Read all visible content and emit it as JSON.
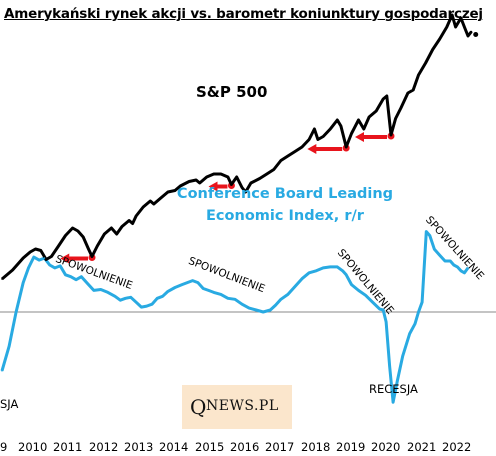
{
  "title": "Amerykański rynek akcji vs. barometr koniunktury gospodarczej",
  "labels": {
    "sp500": "S&P 500",
    "cb_line1": "Conference Board Leading",
    "cb_line2": "Economic Index, r/r",
    "slowdown_1": "SPOWOLNIENIE",
    "slowdown_2": "SPOWOLNIENIE",
    "slowdown_3": "SPOWOLNIENIE",
    "slowdown_4": "SPOWOLNIENIE",
    "recession_left": "SJA",
    "recession_2020": "RECESJA"
  },
  "brand": {
    "q": "Q",
    "rest": "NEWS.PL"
  },
  "chart_data": {
    "type": "line",
    "title": "Amerykański rynek akcji vs. barometr koniunktury gospodarczej",
    "x_ticks": [
      "9",
      "2010",
      "2011",
      "2012",
      "2013",
      "2014",
      "2015",
      "2016",
      "2017",
      "2018",
      "2019",
      "2020",
      "2021",
      "2022"
    ],
    "x_range": [
      2009.2,
      2022.7
    ],
    "grid": false,
    "colors": {
      "sp500": "#000000",
      "cb": "#29aae2",
      "arrows": "#e8141c",
      "zero_line": "#8a8a8a"
    },
    "series": [
      {
        "name": "S&P 500",
        "relative_level": [
          [
            2009.2,
            0.02
          ],
          [
            2009.5,
            0.08
          ],
          [
            2009.8,
            0.16
          ],
          [
            2010.0,
            0.2
          ],
          [
            2010.15,
            0.22
          ],
          [
            2010.3,
            0.21
          ],
          [
            2010.45,
            0.15
          ],
          [
            2010.6,
            0.17
          ],
          [
            2010.8,
            0.24
          ],
          [
            2011.0,
            0.31
          ],
          [
            2011.2,
            0.36
          ],
          [
            2011.35,
            0.34
          ],
          [
            2011.5,
            0.3
          ],
          [
            2011.65,
            0.22
          ],
          [
            2011.75,
            0.17
          ],
          [
            2011.9,
            0.24
          ],
          [
            2012.1,
            0.32
          ],
          [
            2012.3,
            0.36
          ],
          [
            2012.45,
            0.32
          ],
          [
            2012.6,
            0.37
          ],
          [
            2012.8,
            0.41
          ],
          [
            2012.9,
            0.39
          ],
          [
            2013.0,
            0.44
          ],
          [
            2013.2,
            0.5
          ],
          [
            2013.4,
            0.54
          ],
          [
            2013.5,
            0.52
          ],
          [
            2013.7,
            0.56
          ],
          [
            2013.9,
            0.6
          ],
          [
            2014.1,
            0.61
          ],
          [
            2014.25,
            0.64
          ],
          [
            2014.5,
            0.67
          ],
          [
            2014.7,
            0.68
          ],
          [
            2014.8,
            0.66
          ],
          [
            2015.0,
            0.7
          ],
          [
            2015.2,
            0.72
          ],
          [
            2015.4,
            0.72
          ],
          [
            2015.6,
            0.7
          ],
          [
            2015.7,
            0.65
          ],
          [
            2015.85,
            0.7
          ],
          [
            2016.0,
            0.63
          ],
          [
            2016.1,
            0.6
          ],
          [
            2016.25,
            0.66
          ],
          [
            2016.5,
            0.69
          ],
          [
            2016.7,
            0.72
          ],
          [
            2016.9,
            0.75
          ],
          [
            2017.1,
            0.81
          ],
          [
            2017.3,
            0.84
          ],
          [
            2017.5,
            0.87
          ],
          [
            2017.7,
            0.9
          ],
          [
            2017.9,
            0.95
          ],
          [
            2018.05,
            1.02
          ],
          [
            2018.15,
            0.95
          ],
          [
            2018.3,
            0.97
          ],
          [
            2018.5,
            1.02
          ],
          [
            2018.7,
            1.08
          ],
          [
            2018.8,
            1.04
          ],
          [
            2018.95,
            0.9
          ],
          [
            2019.1,
            0.99
          ],
          [
            2019.3,
            1.08
          ],
          [
            2019.45,
            1.02
          ],
          [
            2019.6,
            1.1
          ],
          [
            2019.8,
            1.14
          ],
          [
            2020.0,
            1.22
          ],
          [
            2020.1,
            1.24
          ],
          [
            2020.22,
            0.98
          ],
          [
            2020.35,
            1.09
          ],
          [
            2020.5,
            1.16
          ],
          [
            2020.7,
            1.26
          ],
          [
            2020.85,
            1.28
          ],
          [
            2021.0,
            1.38
          ],
          [
            2021.2,
            1.46
          ],
          [
            2021.4,
            1.55
          ],
          [
            2021.6,
            1.62
          ],
          [
            2021.8,
            1.7
          ],
          [
            2021.95,
            1.78
          ],
          [
            2022.05,
            1.7
          ],
          [
            2022.2,
            1.76
          ],
          [
            2022.3,
            1.7
          ],
          [
            2022.4,
            1.64
          ],
          [
            2022.5,
            1.67
          ]
        ]
      },
      {
        "name": "Conference Board Leading Economic Index, r/r",
        "values": [
          [
            2009.2,
            -0.6
          ],
          [
            2009.4,
            -0.35
          ],
          [
            2009.6,
            0.0
          ],
          [
            2009.8,
            0.3
          ],
          [
            2009.95,
            0.45
          ],
          [
            2010.1,
            0.56
          ],
          [
            2010.25,
            0.53
          ],
          [
            2010.4,
            0.55
          ],
          [
            2010.55,
            0.48
          ],
          [
            2010.7,
            0.45
          ],
          [
            2010.85,
            0.47
          ],
          [
            2011.0,
            0.38
          ],
          [
            2011.15,
            0.36
          ],
          [
            2011.3,
            0.33
          ],
          [
            2011.45,
            0.36
          ],
          [
            2011.6,
            0.3
          ],
          [
            2011.8,
            0.22
          ],
          [
            2012.0,
            0.23
          ],
          [
            2012.2,
            0.2
          ],
          [
            2012.4,
            0.16
          ],
          [
            2012.55,
            0.12
          ],
          [
            2012.7,
            0.14
          ],
          [
            2012.85,
            0.15
          ],
          [
            2013.0,
            0.1
          ],
          [
            2013.15,
            0.05
          ],
          [
            2013.3,
            0.06
          ],
          [
            2013.45,
            0.08
          ],
          [
            2013.6,
            0.14
          ],
          [
            2013.75,
            0.16
          ],
          [
            2013.9,
            0.21
          ],
          [
            2014.1,
            0.25
          ],
          [
            2014.3,
            0.28
          ],
          [
            2014.45,
            0.3
          ],
          [
            2014.6,
            0.32
          ],
          [
            2014.75,
            0.3
          ],
          [
            2014.9,
            0.24
          ],
          [
            2015.05,
            0.22
          ],
          [
            2015.2,
            0.2
          ],
          [
            2015.4,
            0.18
          ],
          [
            2015.6,
            0.14
          ],
          [
            2015.8,
            0.13
          ],
          [
            2016.0,
            0.08
          ],
          [
            2016.2,
            0.04
          ],
          [
            2016.4,
            0.02
          ],
          [
            2016.6,
            0.0
          ],
          [
            2016.8,
            0.02
          ],
          [
            2016.95,
            0.07
          ],
          [
            2017.1,
            0.13
          ],
          [
            2017.3,
            0.18
          ],
          [
            2017.5,
            0.26
          ],
          [
            2017.7,
            0.34
          ],
          [
            2017.9,
            0.4
          ],
          [
            2018.1,
            0.42
          ],
          [
            2018.3,
            0.45
          ],
          [
            2018.5,
            0.46
          ],
          [
            2018.7,
            0.46
          ],
          [
            2018.85,
            0.42
          ],
          [
            2018.95,
            0.38
          ],
          [
            2019.1,
            0.28
          ],
          [
            2019.3,
            0.22
          ],
          [
            2019.5,
            0.17
          ],
          [
            2019.7,
            0.1
          ],
          [
            2019.9,
            0.03
          ],
          [
            2020.0,
            0.02
          ],
          [
            2020.08,
            -0.1
          ],
          [
            2020.18,
            -0.55
          ],
          [
            2020.28,
            -0.92
          ],
          [
            2020.4,
            -0.7
          ],
          [
            2020.55,
            -0.45
          ],
          [
            2020.75,
            -0.22
          ],
          [
            2020.9,
            -0.12
          ],
          [
            2021.0,
            0.0
          ],
          [
            2021.1,
            0.1
          ],
          [
            2021.22,
            0.82
          ],
          [
            2021.32,
            0.78
          ],
          [
            2021.45,
            0.64
          ],
          [
            2021.6,
            0.58
          ],
          [
            2021.75,
            0.52
          ],
          [
            2021.9,
            0.52
          ],
          [
            2022.0,
            0.48
          ],
          [
            2022.1,
            0.46
          ],
          [
            2022.2,
            0.42
          ],
          [
            2022.3,
            0.4
          ],
          [
            2022.4,
            0.45
          ]
        ]
      }
    ],
    "annotations": {
      "slowdown_arrows": [
        {
          "from": 2011.75,
          "to": 2010.85
        },
        {
          "from": 2015.7,
          "to": 2015.05
        },
        {
          "from": 2018.95,
          "to": 2017.85
        },
        {
          "from": 2020.22,
          "to": 2019.2
        }
      ]
    }
  }
}
